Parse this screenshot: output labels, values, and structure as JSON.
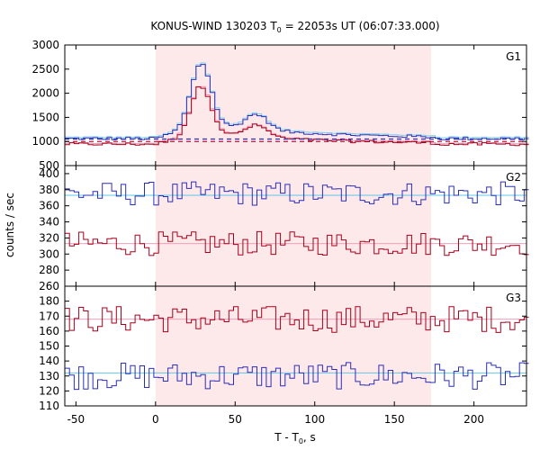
{
  "chart_data": {
    "type": "line",
    "title_main": "KONUS-WIND 130203 T",
    "title_sub": "0",
    "title_rest": " = 22053s UT (06:07:33.000)",
    "xlabel_main": "T - T",
    "xlabel_sub": "0",
    "xlabel_rest": ", s",
    "ylabel": "counts / sec",
    "xlim": [
      -57,
      233
    ],
    "x_ticks": [
      -50,
      0,
      50,
      100,
      150,
      200
    ],
    "highlight_interval": [
      0,
      173
    ],
    "colors": {
      "blue": "#2b2fb8",
      "red": "#a8001c",
      "lightblue": "#7fd0f0",
      "pink": "#f08fb0",
      "cyanfit": "#5fc8e8",
      "pinkfit": "#f0a0b8",
      "shade": "#fde8ea"
    },
    "panels": [
      {
        "label": "G1",
        "ylim": [
          500,
          3000
        ],
        "y_ticks": [
          500,
          1000,
          1500,
          2000,
          2500,
          3000
        ],
        "background_levels": [
          {
            "name": "blue",
            "value": 1050
          },
          {
            "name": "red",
            "value": 950
          }
        ],
        "dashed_red_level": 1000,
        "peak_x": 28,
        "series": [
          {
            "color_key": "blue",
            "base": 1050,
            "peak": 2350
          },
          {
            "color_key": "red",
            "base": 950,
            "peak": 1970
          }
        ]
      },
      {
        "label": "G2",
        "ylim": [
          260,
          410
        ],
        "y_ticks": [
          260,
          280,
          300,
          320,
          340,
          360,
          380,
          400
        ],
        "series": [
          {
            "color_key": "blue",
            "mean": 375,
            "fit": 373
          },
          {
            "color_key": "red",
            "mean": 313,
            "fit": 313
          }
        ]
      },
      {
        "label": "G3",
        "ylim": [
          110,
          190
        ],
        "y_ticks": [
          110,
          120,
          130,
          140,
          150,
          160,
          170,
          180
        ],
        "series": [
          {
            "color_key": "red",
            "mean": 168,
            "fit": 168
          },
          {
            "color_key": "blue",
            "mean": 130,
            "fit": 132
          }
        ]
      }
    ]
  }
}
